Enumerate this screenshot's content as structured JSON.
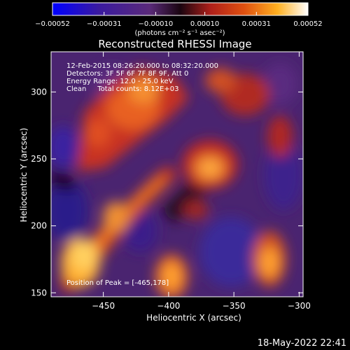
{
  "chart_data": {
    "type": "heatmap",
    "title": "Reconstructed RHESSI Image",
    "xlabel": "Heliocentric X (arcsec)",
    "ylabel": "Heliocentric Y (arcsec)",
    "xlim": [
      -490,
      -297
    ],
    "ylim": [
      147,
      330
    ],
    "x_ticks": [
      -450,
      -400,
      -350,
      -300
    ],
    "y_ticks": [
      150,
      200,
      250,
      300
    ],
    "x_tick_labels": [
      "−450",
      "−400",
      "−350",
      "−300"
    ],
    "y_tick_labels": [
      "150",
      "200",
      "250",
      "300"
    ],
    "colorbar": {
      "min": -0.00052,
      "max": 0.00052,
      "ticks": [
        -0.00052,
        -0.00031,
        -0.0001,
        0.0001,
        0.00031,
        0.00052
      ],
      "tick_labels": [
        "−0.00052",
        "−0.00031",
        "−0.00010",
        "0.00010",
        "0.00031",
        "0.00052"
      ],
      "units_label": "(photons cm⁻² s⁻¹ asec⁻²)",
      "colormap": "blue-purple-red-orange-yellow-white"
    },
    "annotations": [
      "12-Feb-2015 08:26:20.000 to 08:32:20.000",
      "Detectors: 3F 5F 6F 7F 8F 9F, Att 0",
      "Energy Range: 12.0 - 25.0 keV",
      "Clean     Total counts: 8.12E+03"
    ],
    "peak_label": "Position of Peak = [-465,178]",
    "peak_position": [
      -465,
      178
    ],
    "grid": false
  },
  "footer_timestamp": "18-May-2022 22:41",
  "colors": {
    "background": "#000000",
    "text": "#ffffff"
  }
}
